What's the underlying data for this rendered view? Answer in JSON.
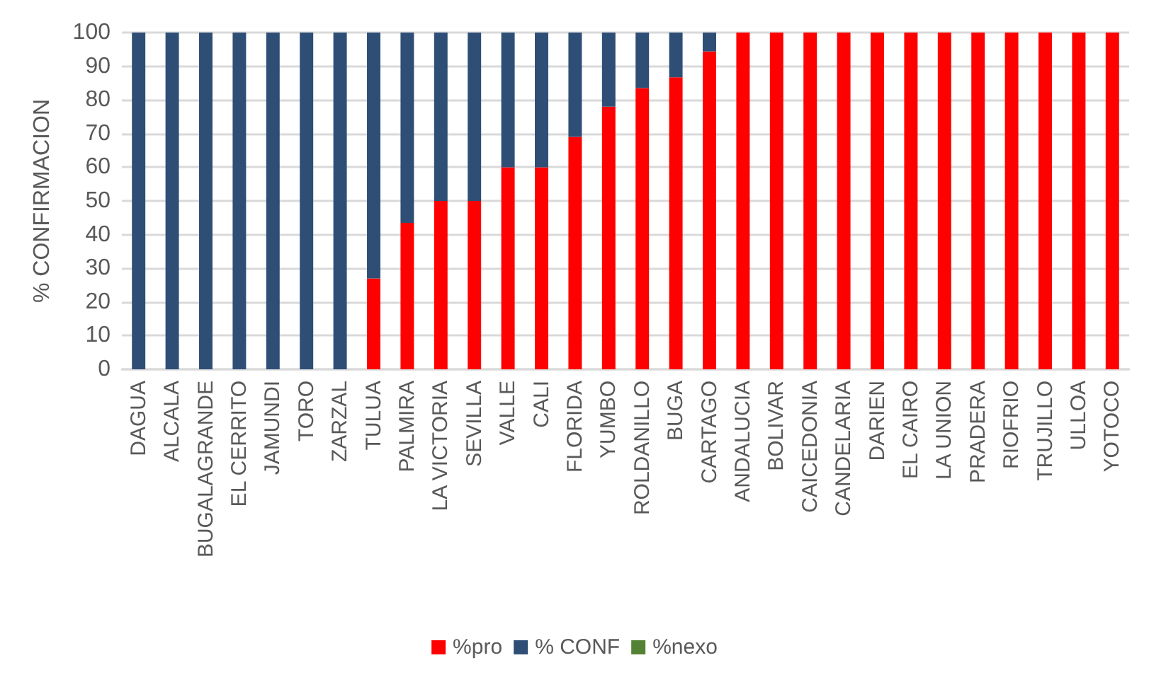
{
  "chart_data": {
    "type": "bar",
    "stacked": true,
    "ylabel": "% CONFIRMACION",
    "categories": [
      "DAGUA",
      "ALCALA",
      "BUGALAGRANDE",
      "EL CERRITO",
      "JAMUNDI",
      "TORO",
      "ZARZAL",
      "TULUA",
      "PALMIRA",
      "LA VICTORIA",
      "SEVILLA",
      "VALLE",
      "CALI",
      "FLORIDA",
      "YUMBO",
      "ROLDANILLO",
      "BUGA",
      "CARTAGO",
      "ANDALUCIA",
      "BOLIVAR",
      "CAICEDONIA",
      "CANDELARIA",
      "DARIEN",
      "EL CAIRO",
      "LA UNION",
      "PRADERA",
      "RIOFRIO",
      "TRUJILLO",
      "ULLOA",
      "YOTOCO"
    ],
    "series": [
      {
        "name": "%pro",
        "color": "#ff0000",
        "values": [
          0,
          0,
          0,
          0,
          0,
          0,
          0,
          27,
          43.5,
          50,
          50,
          60,
          60,
          69,
          78,
          83.5,
          86.7,
          94.4,
          100,
          100,
          100,
          100,
          100,
          100,
          100,
          100,
          100,
          100,
          100,
          100
        ]
      },
      {
        "name": "% CONF",
        "color": "#2e4e76",
        "values": [
          100,
          100,
          100,
          100,
          100,
          100,
          100,
          73,
          56.5,
          50,
          50,
          40,
          40,
          31,
          22,
          16.5,
          13.3,
          5.6,
          0,
          0,
          0,
          0,
          0,
          0,
          0,
          0,
          0,
          0,
          0,
          0
        ]
      },
      {
        "name": "%nexo",
        "color": "#548235",
        "values": [
          0,
          0,
          0,
          0,
          0,
          0,
          0,
          0,
          0,
          0,
          0,
          0,
          0,
          0,
          0,
          0,
          0,
          0,
          0,
          0,
          0,
          0,
          0,
          0,
          0,
          0,
          0,
          0,
          0,
          0
        ]
      }
    ],
    "ylim": [
      0,
      100
    ],
    "yticks": [
      0,
      10,
      20,
      30,
      40,
      50,
      60,
      70,
      80,
      90,
      100
    ],
    "grid": "y",
    "legend": "bottom"
  }
}
